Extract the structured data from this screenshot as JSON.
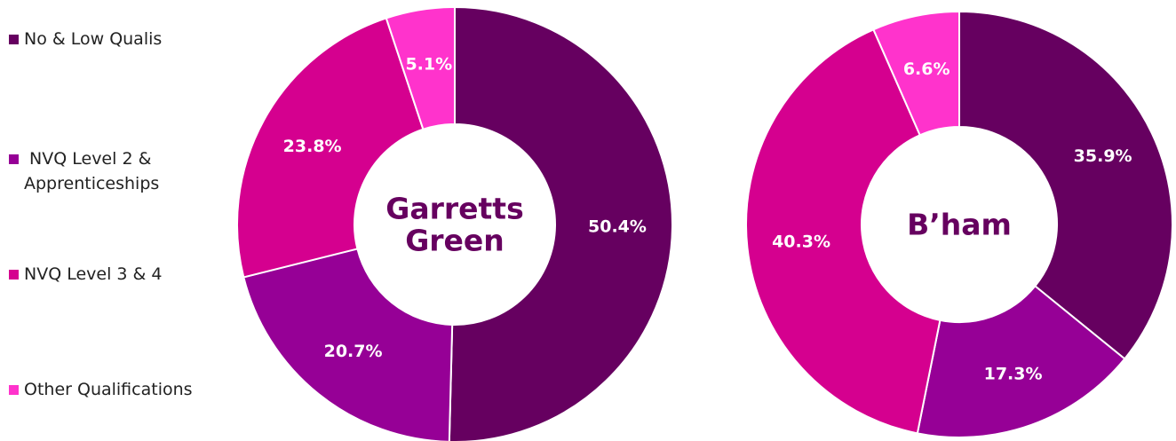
{
  "legend": {
    "items": [
      {
        "label": "No & Low Qualis",
        "color": "#660060"
      },
      {
        "label": " NVQ Level 2 & Apprenticeships",
        "color": "#960096"
      },
      {
        "label": "NVQ Level 3 & 4",
        "color": "#d5008f"
      },
      {
        "label": "Other Qualifications",
        "color": "#ff33cc"
      }
    ]
  },
  "chart_data": [
    {
      "type": "pie",
      "variant": "donut",
      "center_label": "Garretts Green",
      "categories": [
        "No & Low Qualis",
        " NVQ Level 2 & Apprenticeships",
        "NVQ Level 3 & 4",
        "Other Qualifications"
      ],
      "values": [
        50.4,
        20.7,
        23.8,
        5.1
      ],
      "data_labels": [
        "50.4%",
        "20.7%",
        "23.8%",
        "5.1%"
      ],
      "colors": [
        "#660060",
        "#960096",
        "#d5008f",
        "#ff33cc"
      ],
      "legend_position": "left"
    },
    {
      "type": "pie",
      "variant": "donut",
      "center_label": "B’ham",
      "categories": [
        "No & Low Qualis",
        " NVQ Level 2 & Apprenticeships",
        "NVQ Level 3 & 4",
        "Other Qualifications"
      ],
      "values": [
        35.9,
        17.3,
        40.3,
        6.6
      ],
      "data_labels": [
        "35.9%",
        "17.3%",
        "40.3%",
        "6.6%"
      ],
      "colors": [
        "#660060",
        "#960096",
        "#d5008f",
        "#ff33cc"
      ],
      "legend_position": "left"
    }
  ]
}
